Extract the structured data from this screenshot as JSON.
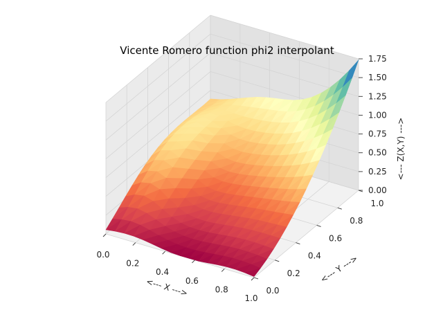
{
  "chart_data": {
    "type": "surface",
    "title": "Vicente Romero function phi2 interpolant",
    "xlabel": "<--- X --->",
    "ylabel": "<--- Y --->",
    "zlabel": "<--- Z(X,Y) --->",
    "xlim": [
      0,
      1
    ],
    "ylim": [
      0,
      1
    ],
    "zlim": [
      0,
      1.75
    ],
    "x_ticks": [
      "0.0",
      "0.2",
      "0.4",
      "0.6",
      "0.8",
      "1.0"
    ],
    "y_ticks": [
      "0.0",
      "0.2",
      "0.4",
      "0.6",
      "0.8",
      "1.0"
    ],
    "z_ticks": [
      "0.00",
      "0.25",
      "0.50",
      "0.75",
      "1.00",
      "1.25",
      "1.50",
      "1.75"
    ],
    "colormap": "Spectral",
    "grid": true,
    "approx_surface_samples": [
      {
        "x": 0.0,
        "y": 0.0,
        "z": 0.05
      },
      {
        "x": 1.0,
        "y": 0.0,
        "z": 0.0
      },
      {
        "x": 0.1,
        "y": 0.6,
        "z": 1.0
      },
      {
        "x": 0.0,
        "y": 1.0,
        "z": 0.98
      },
      {
        "x": 0.5,
        "y": 0.5,
        "z": 0.55
      },
      {
        "x": 1.0,
        "y": 0.5,
        "z": 0.65
      },
      {
        "x": 1.0,
        "y": 1.0,
        "z": 1.75
      }
    ]
  }
}
